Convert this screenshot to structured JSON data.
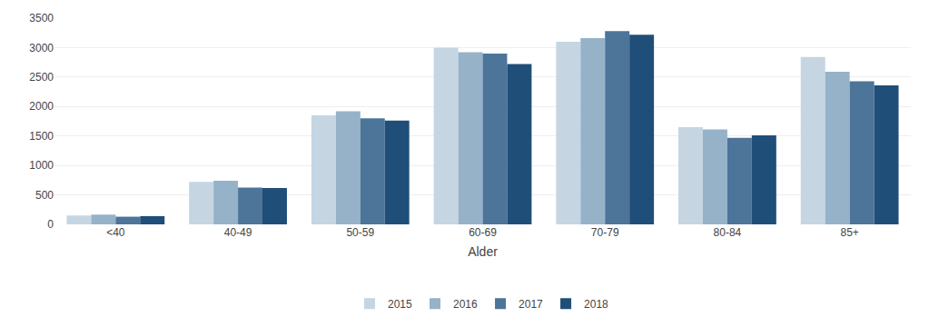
{
  "chart_data": {
    "type": "bar",
    "categories": [
      "<40",
      "40-49",
      "50-59",
      "60-69",
      "70-79",
      "80-84",
      "85+"
    ],
    "series": [
      {
        "name": "2015",
        "color": "#c5d5e2",
        "values": [
          150,
          720,
          1850,
          3000,
          3100,
          1650,
          2840
        ]
      },
      {
        "name": "2016",
        "color": "#95b2c8",
        "values": [
          165,
          740,
          1920,
          2920,
          3160,
          1610,
          2590
        ]
      },
      {
        "name": "2017",
        "color": "#4d7499",
        "values": [
          130,
          625,
          1800,
          2900,
          3280,
          1470,
          2430
        ]
      },
      {
        "name": "2018",
        "color": "#1f4e79",
        "values": [
          140,
          615,
          1760,
          2720,
          3220,
          1510,
          2360
        ]
      }
    ],
    "xlabel": "Alder",
    "ylim": [
      0,
      3500
    ],
    "yticks": [
      0,
      500,
      1000,
      1500,
      2000,
      2500,
      3000,
      3500
    ],
    "grid": true,
    "legend": "bottom"
  }
}
